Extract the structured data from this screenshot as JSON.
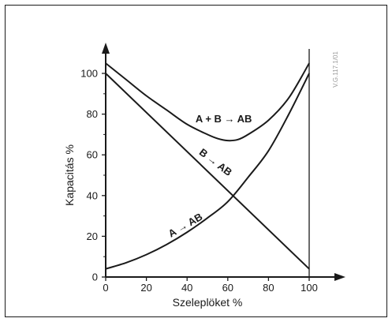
{
  "chart_data": {
    "type": "line",
    "xlabel": "Szeleplöket %",
    "ylabel": "Kapacitás %",
    "xlim": [
      0,
      100
    ],
    "ylim": [
      0,
      100
    ],
    "x_ticks": [
      0,
      20,
      40,
      60,
      80,
      100
    ],
    "y_ticks": [
      0,
      20,
      40,
      60,
      80,
      100
    ],
    "grid": false,
    "series": [
      {
        "name": "A + B → AB",
        "x": [
          0,
          10,
          20,
          30,
          40,
          50,
          55,
          60,
          65,
          70,
          80,
          90,
          100
        ],
        "y": [
          105,
          97,
          89,
          82,
          75,
          70,
          68,
          67,
          67.5,
          70,
          77,
          88,
          105
        ]
      },
      {
        "name": "B → AB",
        "x": [
          0,
          100
        ],
        "y": [
          100,
          4
        ]
      },
      {
        "name": "A → AB",
        "x": [
          0,
          10,
          20,
          30,
          40,
          50,
          60,
          70,
          80,
          90,
          100
        ],
        "y": [
          4,
          7,
          11,
          16,
          22,
          29,
          37,
          49,
          62,
          80,
          100
        ]
      }
    ],
    "annotations": [
      {
        "text": "A + B → AB",
        "x": 58,
        "y": 76
      },
      {
        "text": "B → AB",
        "x": 53,
        "y": 55
      },
      {
        "text": "A → AB",
        "x": 40,
        "y": 24
      }
    ],
    "side_text": "V.G.117.1/01"
  }
}
